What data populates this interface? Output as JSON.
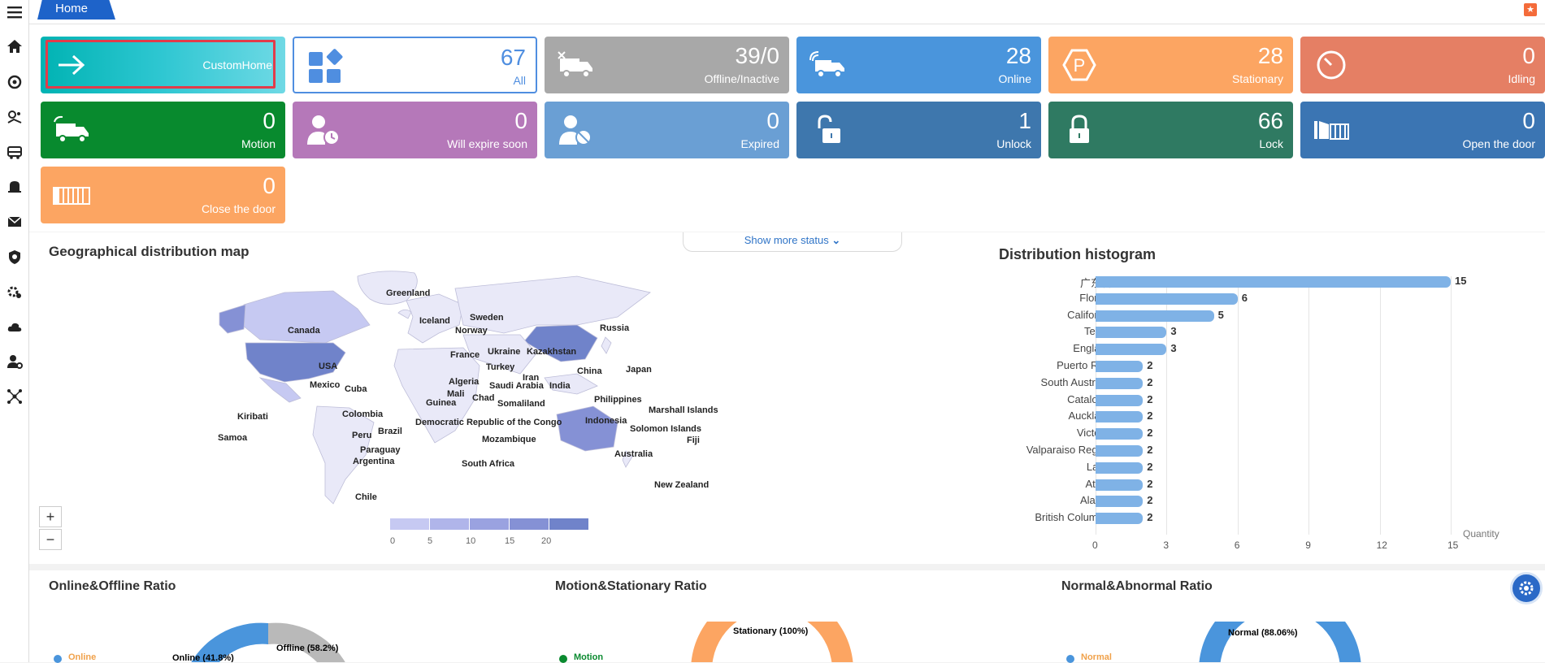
{
  "tab": {
    "home": "Home"
  },
  "sidebar": [
    "menu-icon",
    "home-icon",
    "monitor-icon",
    "track-icon",
    "vehicle-icon",
    "alarm-icon",
    "mail-icon",
    "security-icon",
    "settings-icon",
    "cloud-icon",
    "user-settings-icon",
    "network-icon"
  ],
  "cards": {
    "custom": {
      "label": "CustomHome"
    },
    "all": {
      "value": "67",
      "label": "All"
    },
    "offline": {
      "value": "39/0",
      "label": "Offline/Inactive"
    },
    "online": {
      "value": "28",
      "label": "Online"
    },
    "stationary": {
      "value": "28",
      "label": "Stationary"
    },
    "idling": {
      "value": "0",
      "label": "Idling"
    },
    "motion": {
      "value": "0",
      "label": "Motion"
    },
    "expire_soon": {
      "value": "0",
      "label": "Will expire soon"
    },
    "expired": {
      "value": "0",
      "label": "Expired"
    },
    "unlock": {
      "value": "1",
      "label": "Unlock"
    },
    "lock": {
      "value": "66",
      "label": "Lock"
    },
    "open_door": {
      "value": "0",
      "label": "Open the door"
    },
    "close_door": {
      "value": "0",
      "label": "Close the door"
    }
  },
  "show_more": "Show more status",
  "map": {
    "title": "Geographical distribution map",
    "zoom_in": "+",
    "zoom_out": "−",
    "scale_ticks": [
      "0",
      "5",
      "10",
      "15",
      "20"
    ],
    "scale_colors": [
      "#c6c9f2",
      "#b0b5ea",
      "#9aa2e0",
      "#8591d5",
      "#7083ca"
    ],
    "labels": [
      "Greenland",
      "Canada",
      "Iceland",
      "Sweden",
      "Norway",
      "Russia",
      "USA",
      "France",
      "Ukraine",
      "Kazakhstan",
      "Turkey",
      "China",
      "Japan",
      "Iran",
      "Algeria",
      "Saudi Arabia",
      "India",
      "Mali",
      "Chad",
      "Mexico",
      "Cuba",
      "Philippines",
      "Kiribati",
      "Guinea",
      "Somaliland",
      "Marshall Islands",
      "Colombia",
      "Indonesia",
      "Samoa",
      "Peru",
      "Brazil",
      "Democratic Republic of the Congo",
      "Solomon Islands",
      "Fiji",
      "Mozambique",
      "Paraguay",
      "Australia",
      "Argentina",
      "South Africa",
      "New Zealand",
      "Chile"
    ]
  },
  "histogram": {
    "title": "Distribution histogram",
    "axis_label": "Quantity",
    "ticks": [
      "0",
      "3",
      "6",
      "9",
      "12",
      "15"
    ]
  },
  "chart_data": {
    "type": "bar",
    "orientation": "horizontal",
    "title": "Distribution histogram",
    "xlabel": "Quantity",
    "xlim": [
      0,
      15
    ],
    "categories": [
      "广东省",
      "Florida",
      "California",
      "Texas",
      "England",
      "Puerto Rico",
      "South Australia",
      "Catalonia",
      "Auckland",
      "Victoria",
      "Valparaiso Region",
      "Lazio",
      "Attica",
      "Alaska",
      "British Columbia"
    ],
    "values": [
      15,
      6,
      5,
      3,
      3,
      2,
      2,
      2,
      2,
      2,
      2,
      2,
      2,
      2,
      2
    ]
  },
  "bottom": {
    "online_offline": {
      "title": "Online&Offline Ratio",
      "online": "Online (41.8%)",
      "offline": "Offline (58.2%)",
      "legend": "Online"
    },
    "motion_stationary": {
      "title": "Motion&Stationary Ratio",
      "stationary": "Stationary (100%)",
      "legend": "Motion"
    },
    "normal_abnormal": {
      "title": "Normal&Abnormal Ratio",
      "normal": "Normal (88.06%)",
      "legend": "Normal"
    }
  }
}
